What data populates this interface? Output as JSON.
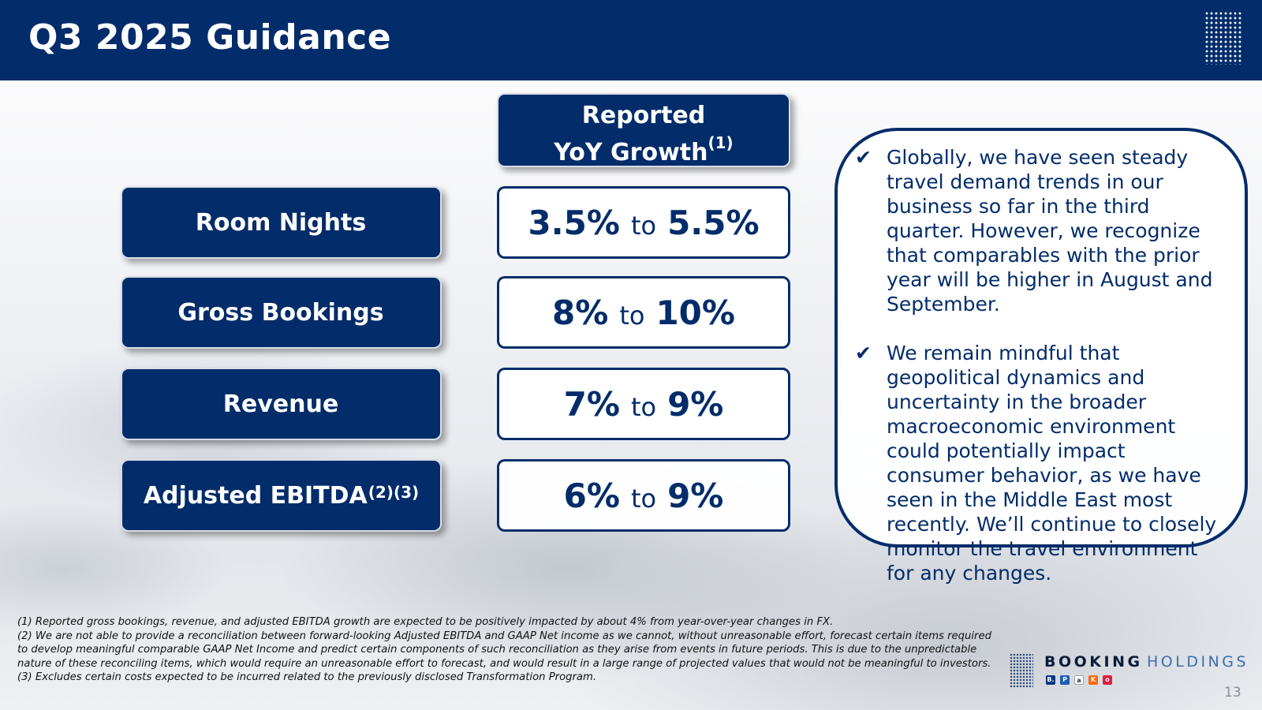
{
  "header": {
    "title": "Q3 2025 Guidance"
  },
  "column_header": {
    "line1": "Reported",
    "line2": "YoY Growth",
    "sup": "(1)"
  },
  "metrics": [
    {
      "label": "Room Nights",
      "sup": "",
      "low": "3.5%",
      "to": "to",
      "high": "5.5%"
    },
    {
      "label": "Gross Bookings",
      "sup": "",
      "low": "8%",
      "to": "to",
      "high": "10%"
    },
    {
      "label": "Revenue",
      "sup": "",
      "low": "7%",
      "to": "to",
      "high": "9%"
    },
    {
      "label": "Adjusted EBITDA",
      "sup": "(2)(3)",
      "low": "6%",
      "to": "to",
      "high": "9%"
    }
  ],
  "commentary": {
    "check_glyph": "✔",
    "bullets": [
      "Globally, we have seen steady travel demand trends in our business so far in the third quarter. However, we recognize that comparables with the prior year will be higher in August and September.",
      "We remain mindful that geopolitical dynamics and uncertainty in the broader macroeconomic environment could potentially impact consumer behavior, as we have seen in the Middle East most recently. We’ll continue to closely monitor the travel environment for any changes."
    ]
  },
  "footnotes": [
    "(1) Reported gross bookings, revenue, and adjusted EBITDA growth are expected to be positively impacted by about 4% from year-over-year changes in FX.",
    "(2) We are not able to provide a reconciliation between forward-looking Adjusted EBITDA and GAAP Net income as we cannot, without unreasonable effort, forecast certain items required to develop meaningful comparable GAAP Net Income and predict certain components of such reconciliation as they arise from events in future periods. This is due to the unpredictable nature of these reconciling items, which would require an unreasonable effort to forecast, and would result in a large range of projected values that would not be meaningful to investors.",
    "(3) Excludes certain costs expected to be incurred related to the previously disclosed Transformation Program."
  ],
  "logo": {
    "word1": "BOOKING",
    "word2": "HOLDINGS",
    "brands": [
      {
        "letter": "B.",
        "color": "#003580"
      },
      {
        "letter": "P",
        "color": "#1a5fb4"
      },
      {
        "letter": "a",
        "color": "#ffffff"
      },
      {
        "letter": "K",
        "color": "#ff690f"
      },
      {
        "letter": "o",
        "color": "#e01f3d"
      }
    ]
  },
  "page_number": "13",
  "colors": {
    "brand_navy": "#022c6a",
    "accent_blue": "#3b6fb5"
  }
}
